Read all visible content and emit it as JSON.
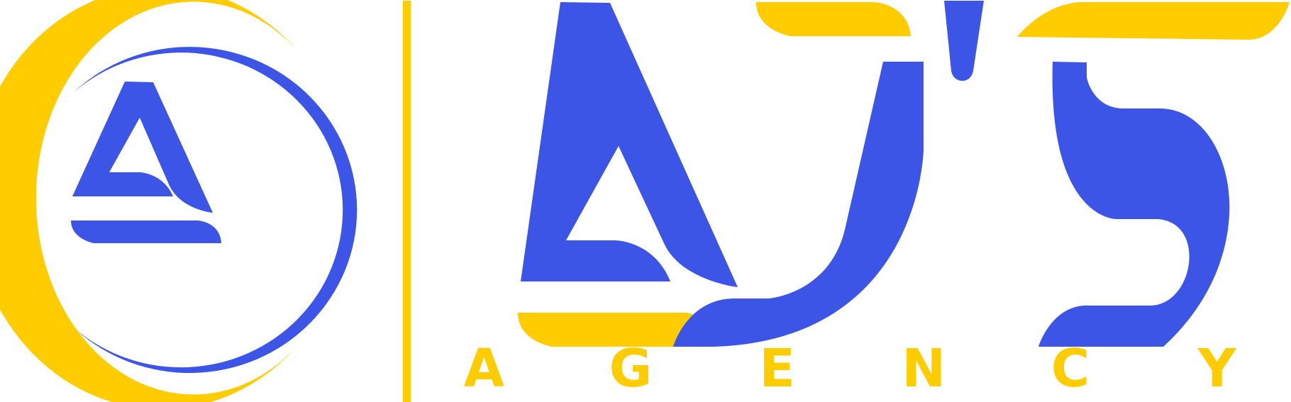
{
  "logo": {
    "brand_letters": "AJ'S",
    "tagline_letters": [
      "A",
      "G",
      "E",
      "N",
      "C",
      "Y"
    ],
    "emblem_letter": "A",
    "colors": {
      "blue": "#3D55E6",
      "yellow": "#FFCC00",
      "background": "#FFFFFF"
    }
  }
}
